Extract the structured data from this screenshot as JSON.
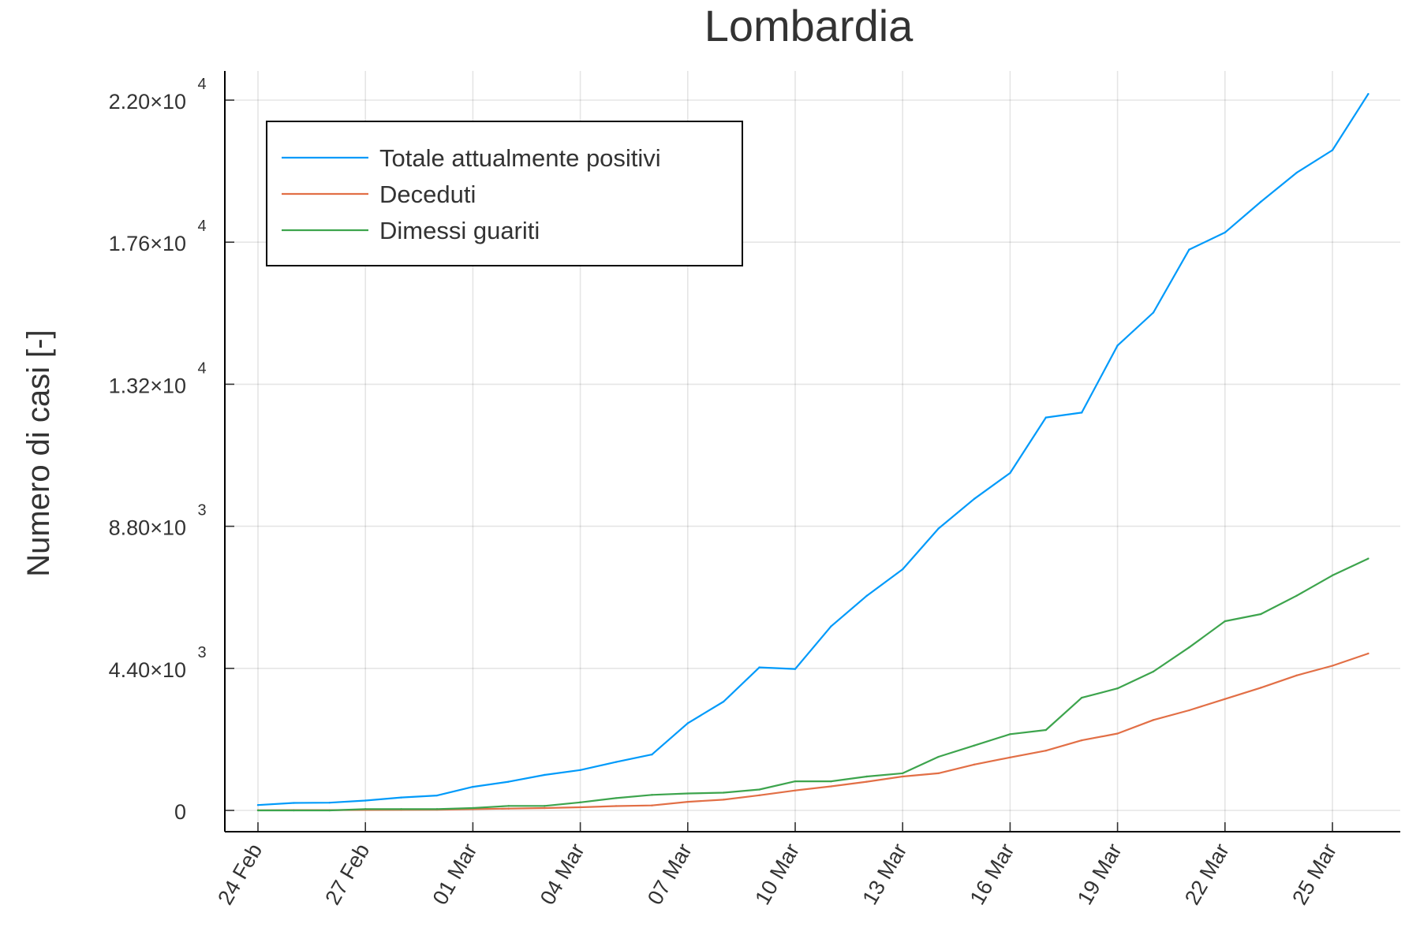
{
  "chart_data": {
    "type": "line",
    "title": "Lombardia",
    "xlabel": "",
    "ylabel": "Numero di casi [-]",
    "ylim": [
      -550,
      22800
    ],
    "grid": true,
    "legend_position": "top-left",
    "x": [
      "24 Feb",
      "25 Feb",
      "26 Feb",
      "27 Feb",
      "28 Feb",
      "29 Feb",
      "01 Mar",
      "02 Mar",
      "03 Mar",
      "04 Mar",
      "05 Mar",
      "06 Mar",
      "07 Mar",
      "08 Mar",
      "09 Mar",
      "10 Mar",
      "11 Mar",
      "12 Mar",
      "13 Mar",
      "14 Mar",
      "15 Mar",
      "16 Mar",
      "17 Mar",
      "18 Mar",
      "19 Mar",
      "20 Mar",
      "21 Mar",
      "22 Mar",
      "23 Mar",
      "24 Mar",
      "25 Mar",
      "26 Mar"
    ],
    "x_ticks": [
      "24 Feb",
      "27 Feb",
      "01 Mar",
      "04 Mar",
      "07 Mar",
      "10 Mar",
      "13 Mar",
      "16 Mar",
      "19 Mar",
      "22 Mar",
      "25 Mar"
    ],
    "y_ticks": [
      {
        "value": 0,
        "mantissa": "0",
        "exponent": ""
      },
      {
        "value": 4400,
        "mantissa": "4.40×10",
        "exponent": "3"
      },
      {
        "value": 8800,
        "mantissa": "8.80×10",
        "exponent": "3"
      },
      {
        "value": 13200,
        "mantissa": "1.32×10",
        "exponent": "4"
      },
      {
        "value": 17600,
        "mantissa": "1.76×10",
        "exponent": "4"
      },
      {
        "value": 22000,
        "mantissa": "2.20×10",
        "exponent": "4"
      }
    ],
    "series": [
      {
        "name": "Totale attualmente positivi",
        "color": "#009AFA",
        "values": [
          166,
          231,
          240,
          305,
          400,
          462,
          730,
          890,
          1100,
          1250,
          1500,
          1730,
          2700,
          3370,
          4430,
          4380,
          5700,
          6650,
          7470,
          8730,
          9650,
          10450,
          12170,
          12320,
          14400,
          15420,
          17370,
          17900,
          18850,
          19750,
          20450,
          22190
        ]
      },
      {
        "name": "Deceduti",
        "color": "#E26F46",
        "values": [
          6,
          9,
          9,
          14,
          17,
          23,
          38,
          55,
          73,
          98,
          135,
          154,
          267,
          333,
          468,
          617,
          744,
          890,
          1050,
          1150,
          1420,
          1640,
          1850,
          2170,
          2380,
          2800,
          3100,
          3450,
          3800,
          4180,
          4480,
          4860
        ]
      },
      {
        "name": "Dimessi guariti",
        "color": "#3DA44D",
        "values": [
          0,
          0,
          0,
          40,
          40,
          40,
          73,
          139,
          139,
          250,
          380,
          480,
          524,
          550,
          646,
          900,
          900,
          1050,
          1150,
          1660,
          2010,
          2360,
          2490,
          3490,
          3780,
          4300,
          5050,
          5860,
          6080,
          6650,
          7280,
          7800
        ]
      }
    ]
  }
}
